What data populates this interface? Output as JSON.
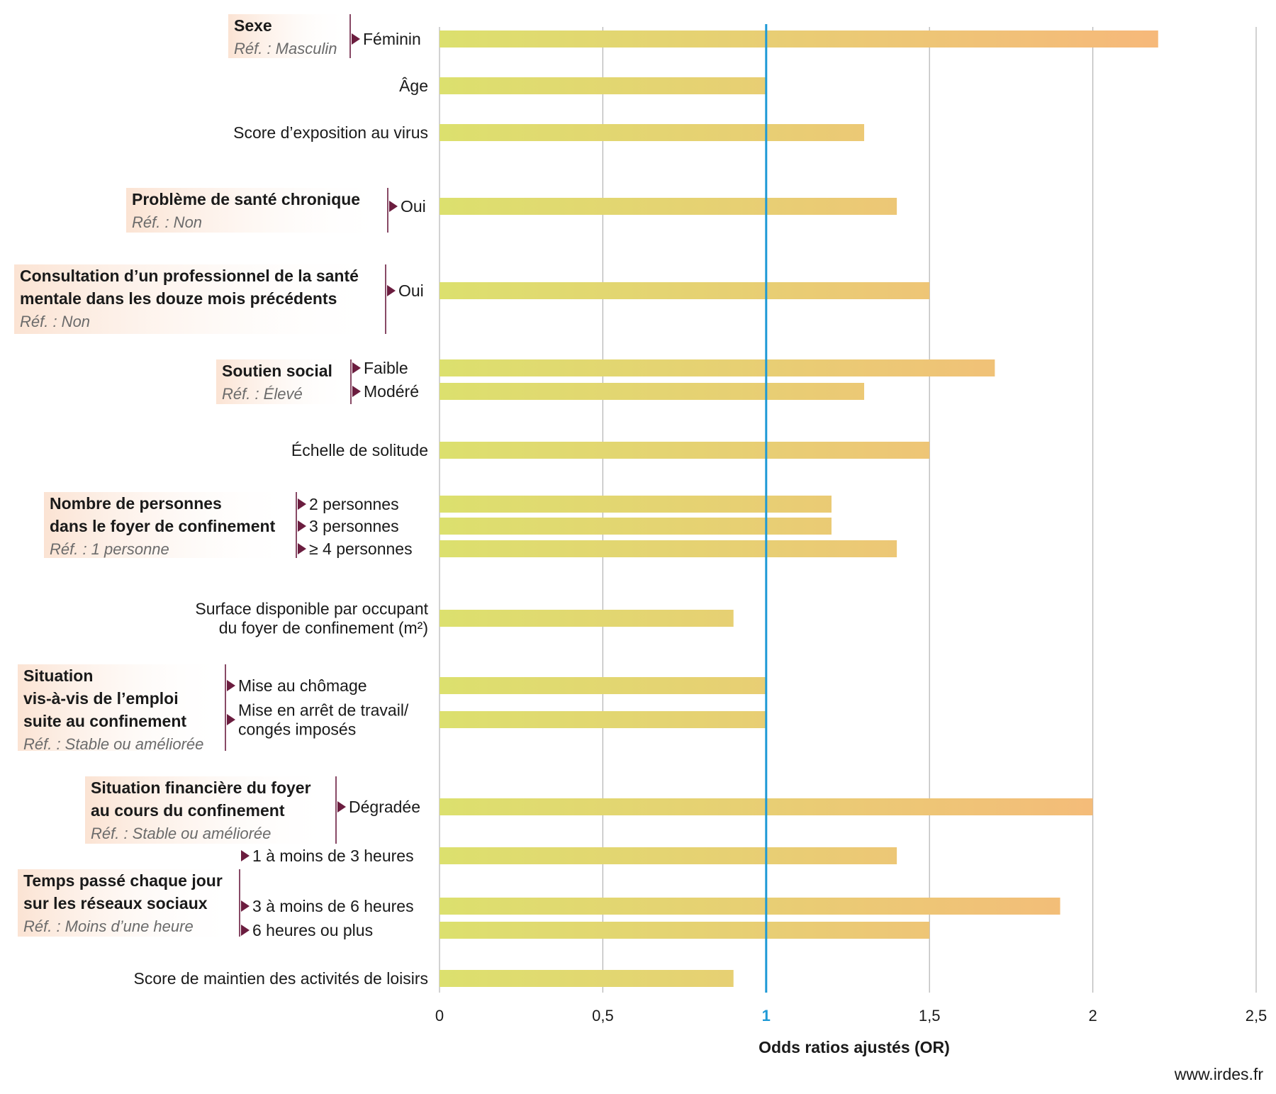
{
  "chart_data": {
    "type": "bar",
    "orientation": "horizontal",
    "xlabel": "Odds ratios ajustés (OR)",
    "xlim": [
      0,
      2.5
    ],
    "ticks": [
      "0",
      "0,5",
      "1",
      "1,5",
      "2",
      "2,5"
    ],
    "tick_values": [
      0,
      0.5,
      1,
      1.5,
      2,
      2.5
    ],
    "reference_line": 1,
    "grid": true,
    "colors": {
      "bar_start": "#dce06e",
      "bar_end": "#f6b97a",
      "reference": "#1f9ad6",
      "marker": "#6b1d3f",
      "box_shade": "#fbe3d3"
    },
    "groups": [
      {
        "title": "Sexe",
        "ref": "Réf. : Masculin",
        "items": [
          {
            "label": "Féminin",
            "value": 2.2
          }
        ]
      },
      {
        "title": "",
        "ref": "",
        "items": [
          {
            "label": "Âge",
            "value": 1.0
          }
        ]
      },
      {
        "title": "",
        "ref": "",
        "items": [
          {
            "label": "Score d’exposition au virus",
            "value": 1.3
          }
        ]
      },
      {
        "title": "Problème de santé chronique",
        "ref": "Réf. : Non",
        "items": [
          {
            "label": "Oui",
            "value": 1.4
          }
        ]
      },
      {
        "title": "Consultation d’un professionnel de la santé mentale dans les douze mois précédents",
        "title_lines": [
          "Consultation d’un professionnel de la santé",
          "mentale dans les douze mois précédents"
        ],
        "ref": "Réf. : Non",
        "items": [
          {
            "label": "Oui",
            "value": 1.5
          }
        ]
      },
      {
        "title": "Soutien social",
        "ref": "Réf. : Élevé",
        "items": [
          {
            "label": "Faible",
            "value": 1.7
          },
          {
            "label": "Modéré",
            "value": 1.3
          }
        ]
      },
      {
        "title": "",
        "ref": "",
        "items": [
          {
            "label": "Échelle de solitude",
            "value": 1.5
          }
        ]
      },
      {
        "title": "Nombre de personnes dans le foyer de confinement",
        "title_lines": [
          "Nombre de personnes",
          "dans le foyer de confinement"
        ],
        "ref": "Réf. : 1 personne",
        "items": [
          {
            "label": "2 personnes",
            "value": 1.2
          },
          {
            "label": "3 personnes",
            "value": 1.2
          },
          {
            "label": "≥ 4 personnes",
            "value": 1.4
          }
        ]
      },
      {
        "title": "",
        "ref": "",
        "items": [
          {
            "label": "Surface disponible par occupant du foyer de confinement (m²)",
            "label_lines": [
              "Surface disponible par occupant",
              "du foyer de confinement (m²)"
            ],
            "value": 0.9
          }
        ]
      },
      {
        "title": "Situation vis-à-vis de l’emploi suite au confinement",
        "title_lines": [
          "Situation",
          "vis-à-vis de l’emploi",
          "suite au confinement"
        ],
        "ref": "Réf. : Stable ou améliorée",
        "items": [
          {
            "label": "Mise au chômage",
            "value": 1.0
          },
          {
            "label": "Mise en arrêt de travail/ congés imposés",
            "label_lines": [
              "Mise en arrêt de travail/",
              "congés imposés"
            ],
            "value": 1.0
          }
        ]
      },
      {
        "title": "Situation financière du foyer au cours du confinement",
        "title_lines": [
          "Situation financière du foyer",
          "au cours du confinement"
        ],
        "ref": "Réf. : Stable ou améliorée",
        "items": [
          {
            "label": "Dégradée",
            "value": 2.0
          }
        ]
      },
      {
        "title": "Temps passé chaque jour sur les réseaux sociaux",
        "title_lines": [
          "Temps passé chaque jour",
          "sur les réseaux sociaux"
        ],
        "ref": "Réf. : Moins d’une heure",
        "items": [
          {
            "label": "1 à moins de 3 heures",
            "value": 1.4
          },
          {
            "label": "3 à moins de 6 heures",
            "value": 1.9
          },
          {
            "label": "6 heures ou plus",
            "value": 1.5
          }
        ]
      },
      {
        "title": "",
        "ref": "",
        "items": [
          {
            "label": "Score de maintien des activités de loisirs",
            "value": 0.9
          }
        ]
      }
    ]
  },
  "footer": {
    "source": "www.irdes.fr"
  }
}
